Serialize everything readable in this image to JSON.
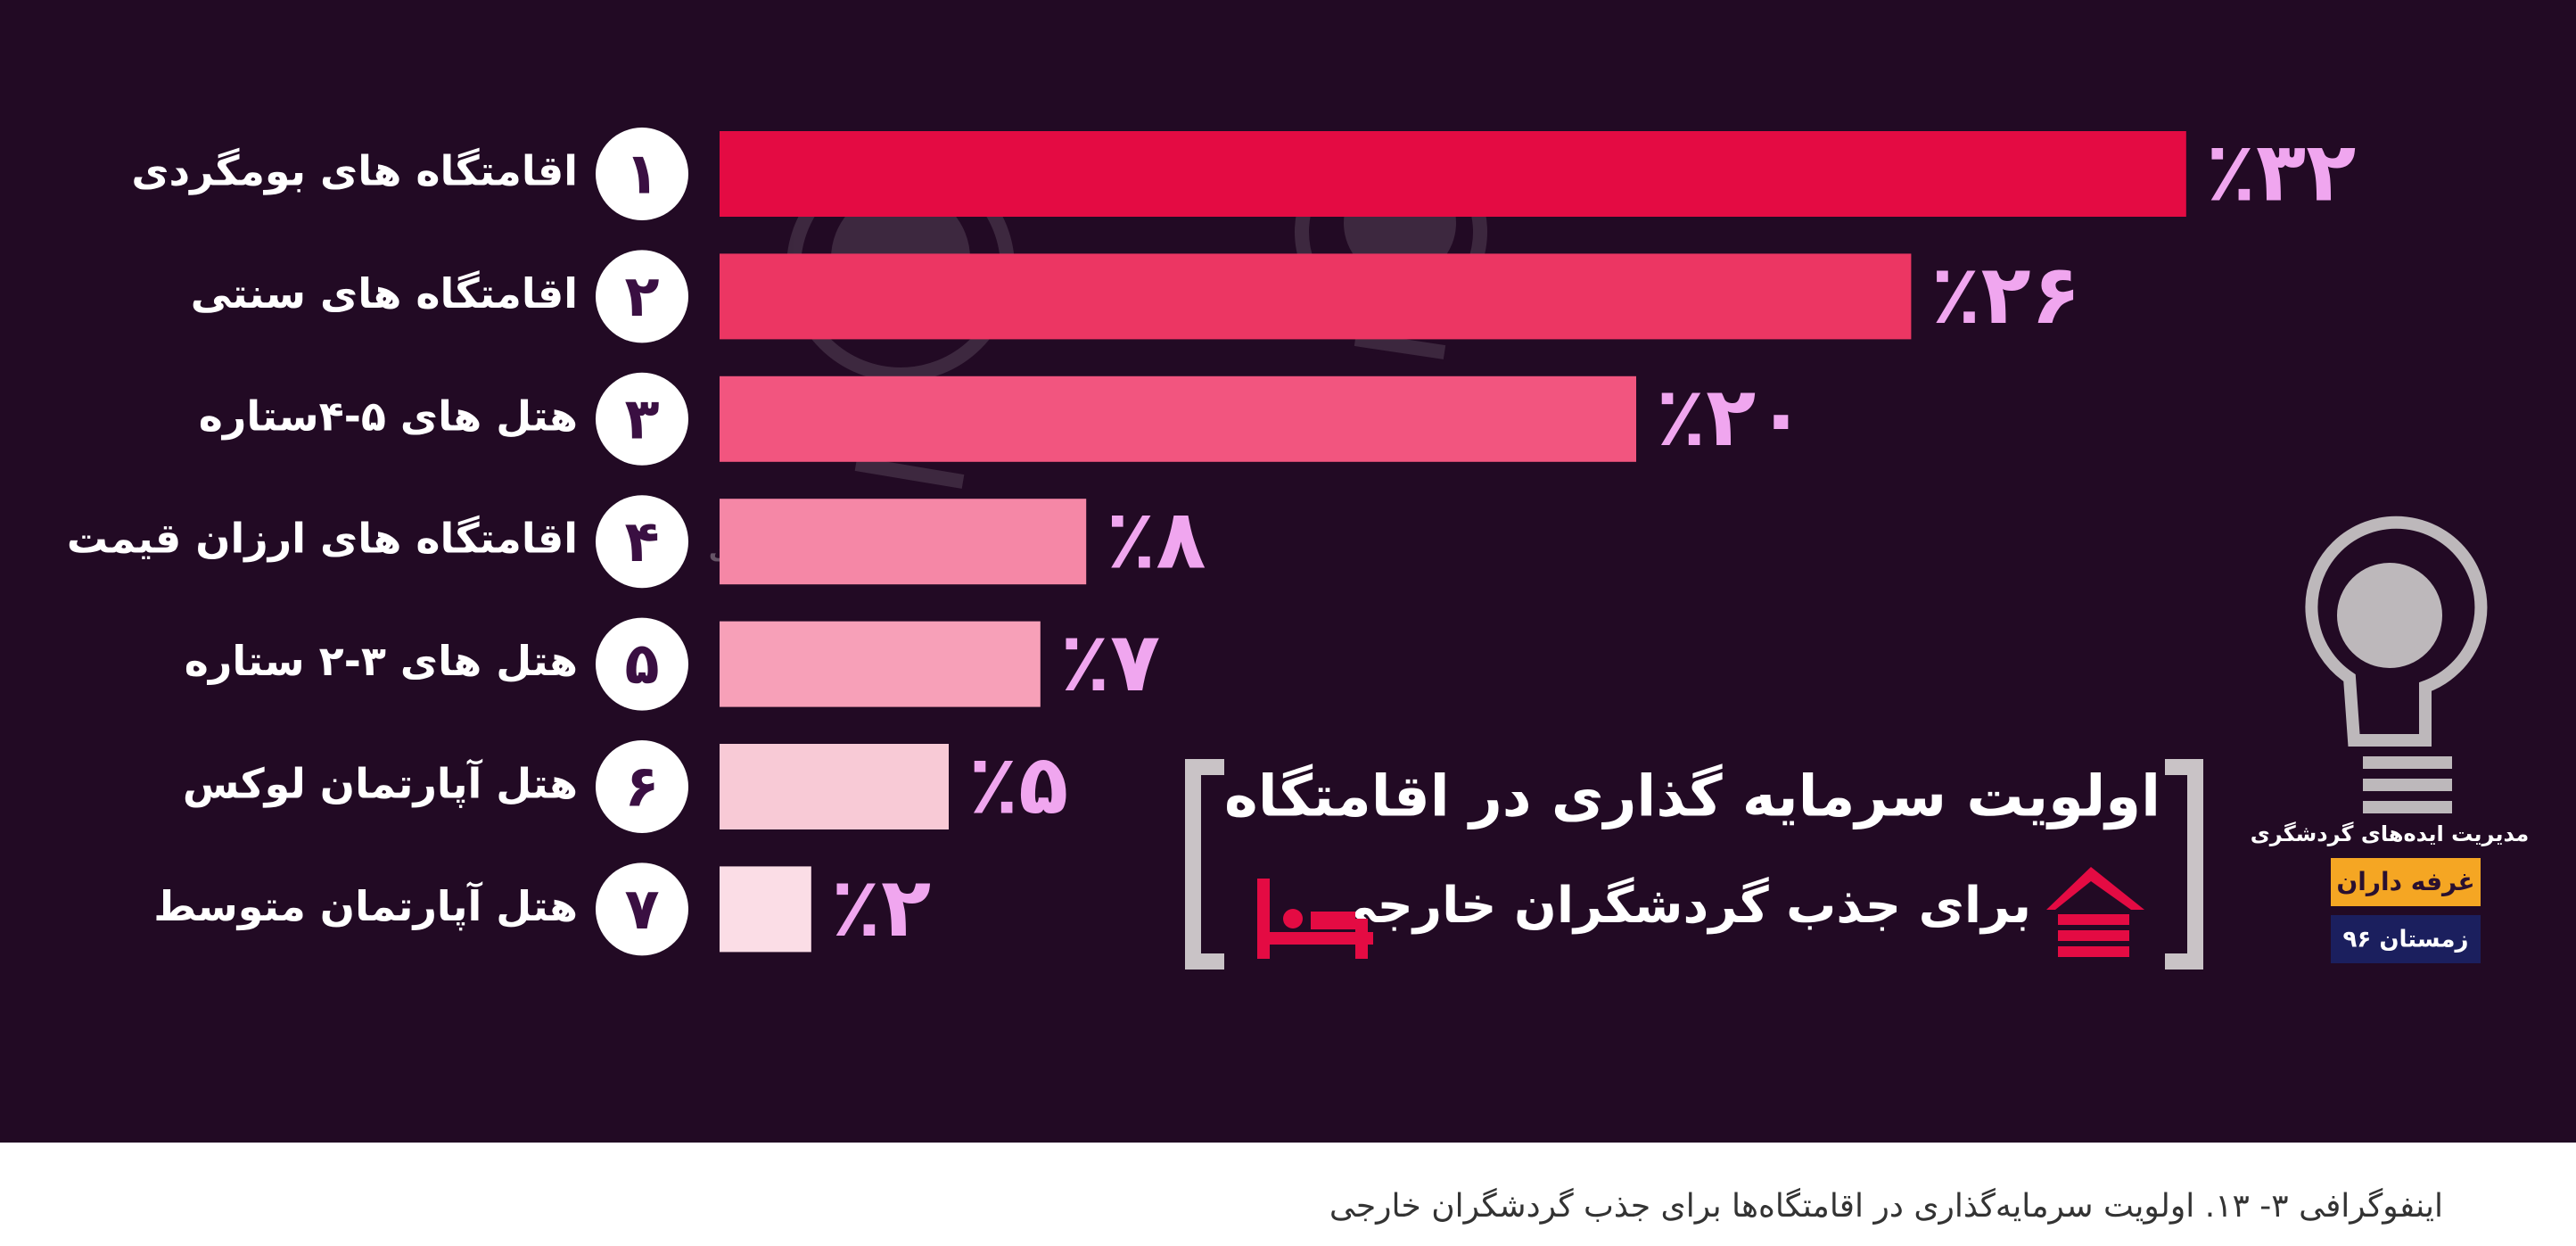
{
  "chart_data": {
    "type": "bar",
    "orientation": "horizontal",
    "title": "اولویت سرمایه گذاری در اقامتگاه",
    "subtitle": "برای جذب گردشگران خارجی",
    "categories": [
      "اقامتگاه های بومگردی",
      "اقامتگاه های سنتی",
      "هتل های ۵-۴ستاره",
      "اقامتگاه های  ارزان قیمت",
      "هتل های ۳-۲ ستاره",
      "هتل آپارتمان لوکس",
      "هتل آپارتمان متوسط"
    ],
    "ranks": [
      "۱",
      "۲",
      "۳",
      "۴",
      "۵",
      "۶",
      "۷"
    ],
    "values": [
      32,
      26,
      20,
      8,
      7,
      5,
      2
    ],
    "value_labels": [
      "٪۳۲",
      "٪۲۶",
      "٪۲۰",
      "٪۸",
      "٪۷",
      "٪۵",
      "٪۲"
    ],
    "colors": [
      "#e40b43",
      "#ec3663",
      "#f2557f",
      "#f587a6",
      "#f7a0b8",
      "#f8cad6",
      "#fbdde6"
    ],
    "watermark": "مدیریت ایده‌های گردشگری",
    "badge_top": "غرفه داران",
    "badge_bottom": "زمستان ۹۶",
    "caption": "اینفوگرافی ۳- ۱۳. اولویت سرمایه‌گذاری در اقامتگاه‌ها برای جذب گردشگران خارجی"
  }
}
